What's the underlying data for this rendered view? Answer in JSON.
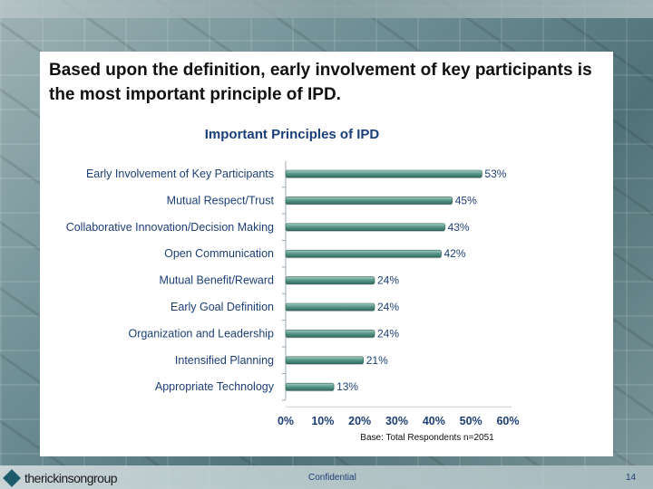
{
  "slide": {
    "headline": "Based upon the definition, early involvement of key participants is the most important principle of IPD.",
    "logo_text": "therickinsongroup",
    "footer_label": "Confidential",
    "page_number": "14"
  },
  "chart_data": {
    "type": "bar",
    "orientation": "horizontal",
    "title": "Important Principles of IPD",
    "categories": [
      "Early Involvement of Key Participants",
      "Mutual Respect/Trust",
      "Collaborative Innovation/Decision Making",
      "Open Communication",
      "Mutual Benefit/Reward",
      "Early Goal Definition",
      "Organization and Leadership",
      "Intensified Planning",
      "Appropriate Technology"
    ],
    "values": [
      53,
      45,
      43,
      42,
      24,
      24,
      24,
      21,
      13
    ],
    "value_labels": [
      "53%",
      "45%",
      "43%",
      "42%",
      "24%",
      "24%",
      "24%",
      "21%",
      "13%"
    ],
    "x_ticks": [
      "0%",
      "10%",
      "20%",
      "30%",
      "40%",
      "50%",
      "60%"
    ],
    "xlim": [
      0,
      60
    ],
    "note": "Base: Total Respondents n=2051",
    "bar_color": "#4e8a7e",
    "text_color": "#1d3f75",
    "grid": false,
    "legend": "none"
  }
}
